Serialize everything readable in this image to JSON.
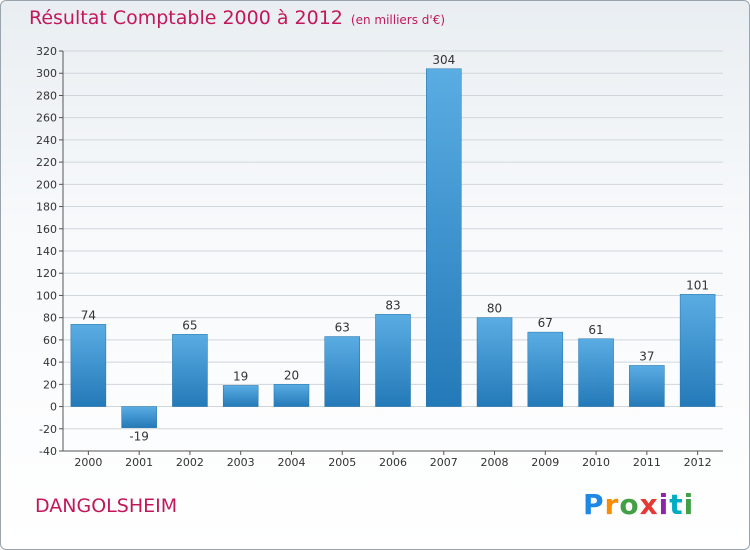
{
  "header": {
    "title": "Résultat Comptable 2000 à 2012",
    "subtitle": "(en milliers d'€)"
  },
  "commune": "DANGOLSHEIM",
  "logo": {
    "letters": [
      "P",
      "r",
      "o",
      "x",
      "i",
      "t",
      "i"
    ],
    "colors": [
      "#1e88e5",
      "#fb8c00",
      "#43a047",
      "#e53935",
      "#8e24aa",
      "#00acc1",
      "#43a047"
    ]
  },
  "colors": {
    "bar_top": "#5aade3",
    "bar_bottom": "#2479b8",
    "title": "#c2185b",
    "grid": "#cfd6dc"
  },
  "chart_data": {
    "type": "bar",
    "title": "Résultat Comptable 2000 à 2012",
    "subtitle": "(en milliers d'€)",
    "categories": [
      "2000",
      "2001",
      "2002",
      "2003",
      "2004",
      "2005",
      "2006",
      "2007",
      "2008",
      "2009",
      "2010",
      "2011",
      "2012"
    ],
    "values": [
      74,
      -19,
      65,
      19,
      20,
      63,
      83,
      304,
      80,
      67,
      61,
      37,
      101
    ],
    "labels": [
      "74",
      "-19",
      "65",
      "19",
      "20",
      "63",
      "83",
      "304",
      "80",
      "67",
      "61",
      "37",
      "101"
    ],
    "ylim": [
      -40,
      320
    ],
    "yticks": [
      -40,
      -20,
      0,
      20,
      40,
      60,
      80,
      100,
      120,
      140,
      160,
      180,
      200,
      220,
      240,
      260,
      280,
      300,
      320
    ],
    "grid": true,
    "xlabel": "",
    "ylabel": ""
  }
}
